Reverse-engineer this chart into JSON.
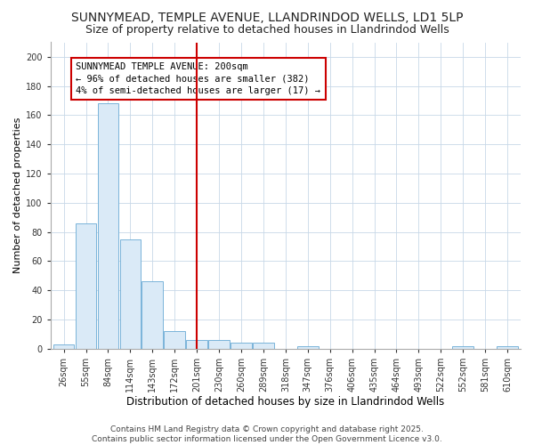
{
  "title_line1": "SUNNYMEAD, TEMPLE AVENUE, LLANDRINDOD WELLS, LD1 5LP",
  "title_line2": "Size of property relative to detached houses in Llandrindod Wells",
  "xlabel": "Distribution of detached houses by size in Llandrindod Wells",
  "ylabel": "Number of detached properties",
  "bar_labels": [
    "26sqm",
    "55sqm",
    "84sqm",
    "114sqm",
    "143sqm",
    "172sqm",
    "201sqm",
    "230sqm",
    "260sqm",
    "289sqm",
    "318sqm",
    "347sqm",
    "376sqm",
    "406sqm",
    "435sqm",
    "464sqm",
    "493sqm",
    "522sqm",
    "552sqm",
    "581sqm",
    "610sqm"
  ],
  "bar_values": [
    3,
    86,
    168,
    75,
    46,
    12,
    6,
    6,
    4,
    4,
    0,
    2,
    0,
    0,
    0,
    0,
    0,
    0,
    2,
    0,
    2
  ],
  "bar_color": "#daeaf7",
  "bar_edge_color": "#7ab3d9",
  "red_line_index": 6,
  "red_line_color": "#cc0000",
  "annotation_text": "SUNNYMEAD TEMPLE AVENUE: 200sqm\n← 96% of detached houses are smaller (382)\n4% of semi-detached houses are larger (17) →",
  "annotation_box_color": "#ffffff",
  "annotation_box_edge_color": "#cc0000",
  "ylim": [
    0,
    210
  ],
  "yticks": [
    0,
    20,
    40,
    60,
    80,
    100,
    120,
    140,
    160,
    180,
    200
  ],
  "grid_color": "#c8d8e8",
  "background_color": "#ffffff",
  "footer_line1": "Contains HM Land Registry data © Crown copyright and database right 2025.",
  "footer_line2": "Contains public sector information licensed under the Open Government Licence v3.0.",
  "title_fontsize": 10,
  "subtitle_fontsize": 9,
  "xlabel_fontsize": 8.5,
  "ylabel_fontsize": 8,
  "tick_fontsize": 7,
  "annotation_fontsize": 7.5,
  "footer_fontsize": 6.5
}
